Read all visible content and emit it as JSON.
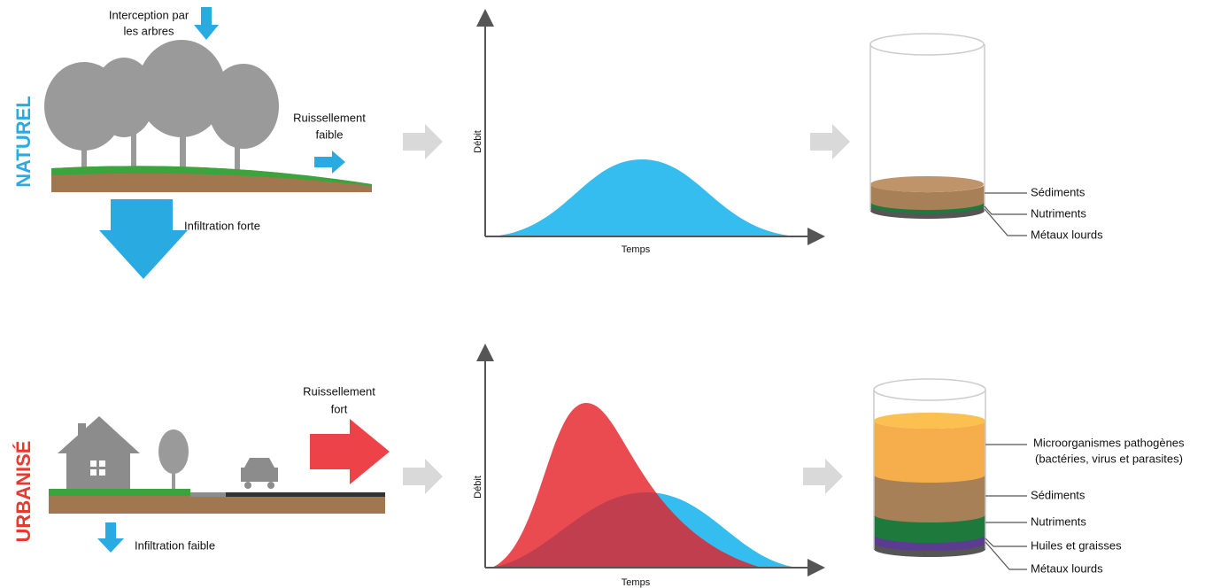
{
  "natural": {
    "title": "NATUREL",
    "interception": [
      "Interception par",
      "les arbres"
    ],
    "runoff": [
      "Ruissellement",
      "faible"
    ],
    "infiltration": "Infiltration forte",
    "graph": {
      "y_label": "Débit",
      "x_label": "Temps"
    },
    "pollutants": [
      [
        "Sédiments"
      ],
      [
        "Nutriments"
      ],
      [
        "Métaux lourds"
      ]
    ]
  },
  "urban": {
    "title": "URBANISÉ",
    "runoff": [
      "Ruissellement",
      "fort"
    ],
    "infiltration": "Infiltration faible",
    "graph": {
      "y_label": "Débit",
      "x_label": "Temps"
    },
    "pollutants": [
      [
        "Microorganismes pathogènes",
        "(bactéries, virus et parasites)"
      ],
      [
        "Sédiments"
      ],
      [
        "Nutriments"
      ],
      [
        "Huiles et graisses"
      ],
      [
        "Métaux lourds"
      ]
    ]
  }
}
